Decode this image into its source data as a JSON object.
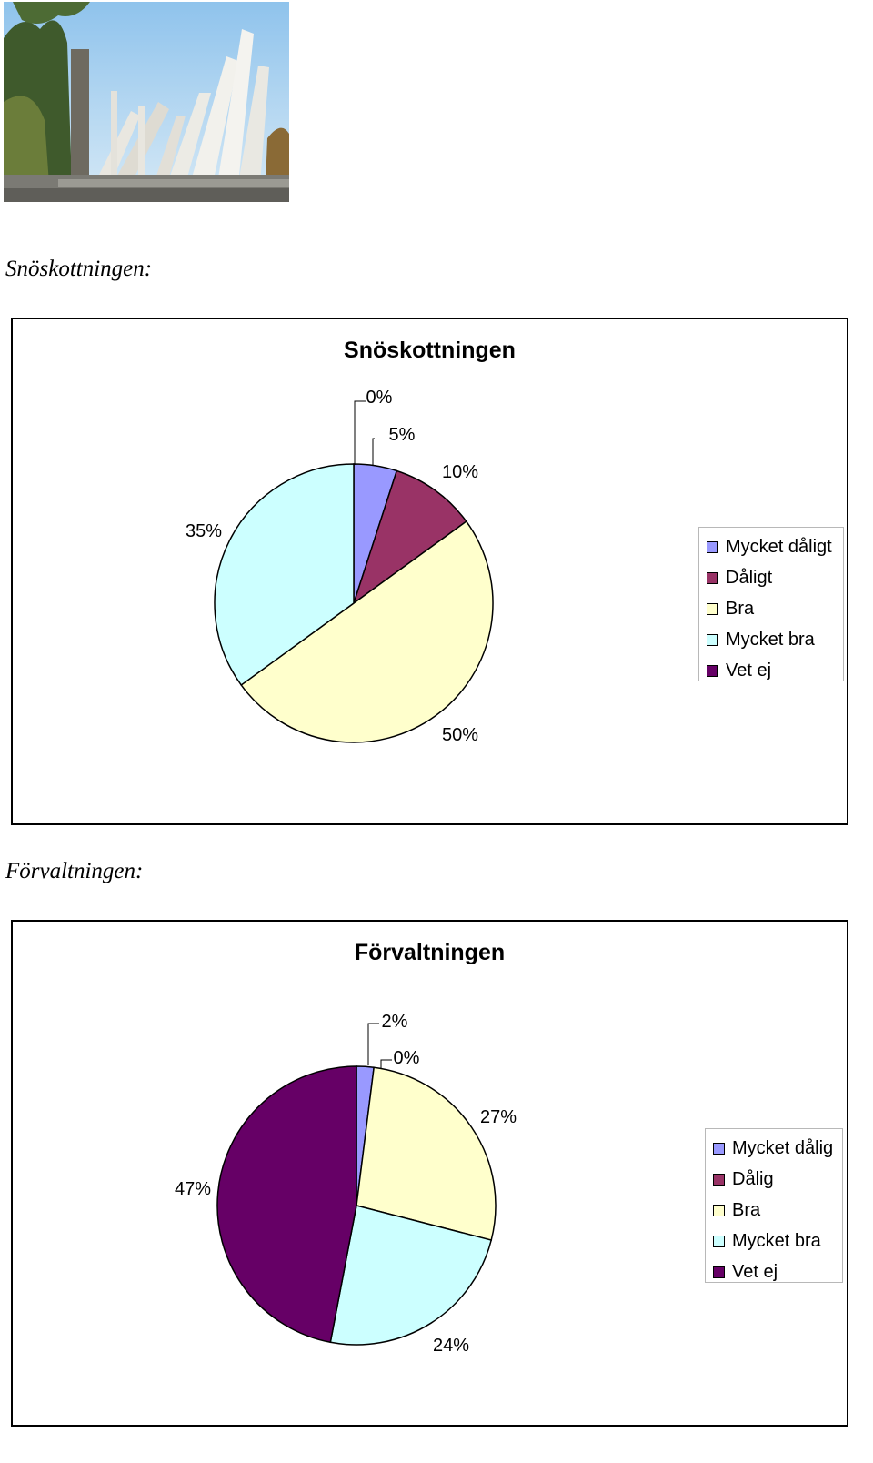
{
  "photo": {
    "description_icon": "monument-photo-icon"
  },
  "sections": [
    {
      "heading": "Snöskottningen:",
      "chart_data": {
        "type": "pie",
        "title": "Snöskottningen",
        "categories": [
          "Mycket dåligt",
          "Dåligt",
          "Bra",
          "Mycket bra",
          "Vet ej"
        ],
        "values": [
          5,
          10,
          50,
          35,
          0
        ],
        "labels": [
          "5%",
          "10%",
          "50%",
          "35%",
          "0%"
        ],
        "colors": [
          "#9999ff",
          "#993366",
          "#ffffcc",
          "#ccffff",
          "#660066"
        ],
        "legend_position": "right"
      }
    },
    {
      "heading": "Förvaltningen:",
      "chart_data": {
        "type": "pie",
        "title": "Förvaltningen",
        "categories": [
          "Mycket dålig",
          "Dålig",
          "Bra",
          "Mycket bra",
          "Vet ej"
        ],
        "values": [
          2,
          0,
          27,
          24,
          47
        ],
        "labels": [
          "2%",
          "0%",
          "27%",
          "24%",
          "47%"
        ],
        "colors": [
          "#9999ff",
          "#993366",
          "#ffffcc",
          "#ccffff",
          "#660066"
        ],
        "legend_position": "right"
      }
    }
  ]
}
